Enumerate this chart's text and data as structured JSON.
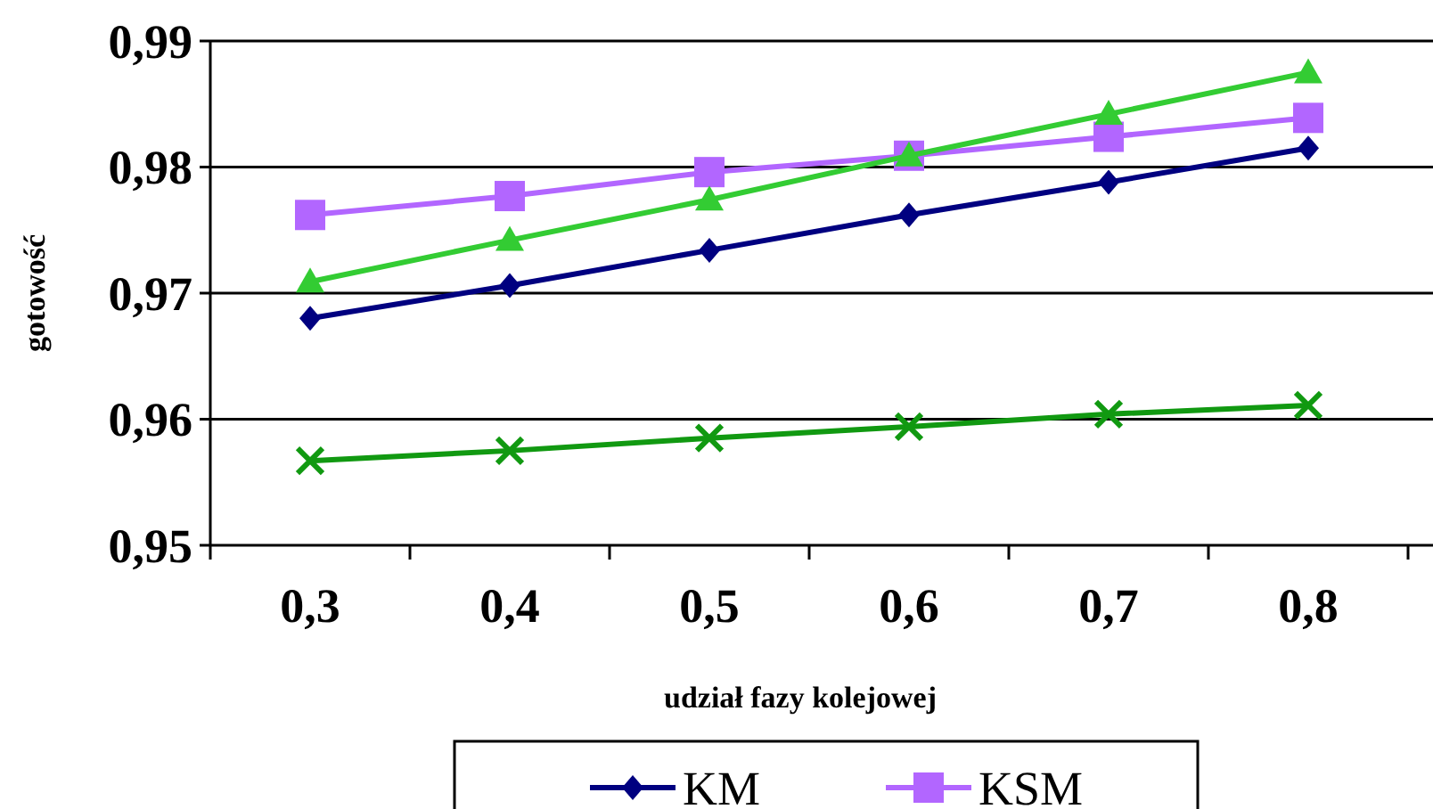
{
  "chart_data": {
    "type": "line",
    "xlabel": "udział fazy kolejowej",
    "ylabel": "gotowość",
    "categories": [
      "0,3",
      "0,4",
      "0,5",
      "0,6",
      "0,7",
      "0,8"
    ],
    "series": [
      {
        "name": "KM",
        "color": "#000080",
        "marker": "diamond",
        "values": [
          0.968,
          0.9706,
          0.9734,
          0.9762,
          0.9788,
          0.9815
        ]
      },
      {
        "name": "KSM",
        "color": "#b266ff",
        "marker": "square",
        "values": [
          0.9762,
          0.9777,
          0.9796,
          0.9809,
          0.9824,
          0.9839
        ]
      },
      {
        "color": "#33cc33",
        "marker": "triangle",
        "values": [
          0.9709,
          0.9742,
          0.9774,
          0.9809,
          0.9842,
          0.9875
        ]
      },
      {
        "color": "#119911",
        "marker": "cross",
        "values": [
          0.9567,
          0.9575,
          0.9585,
          0.9594,
          0.9604,
          0.9611
        ]
      }
    ],
    "ylim": [
      0.95,
      0.99
    ],
    "yticks": [
      {
        "value": 0.95,
        "label": "0,95"
      },
      {
        "value": 0.96,
        "label": "0,96"
      },
      {
        "value": 0.97,
        "label": "0,97"
      },
      {
        "value": 0.98,
        "label": "0,98"
      },
      {
        "value": 0.99,
        "label": "0,99"
      }
    ],
    "grid": "y",
    "legend": "bottom"
  }
}
